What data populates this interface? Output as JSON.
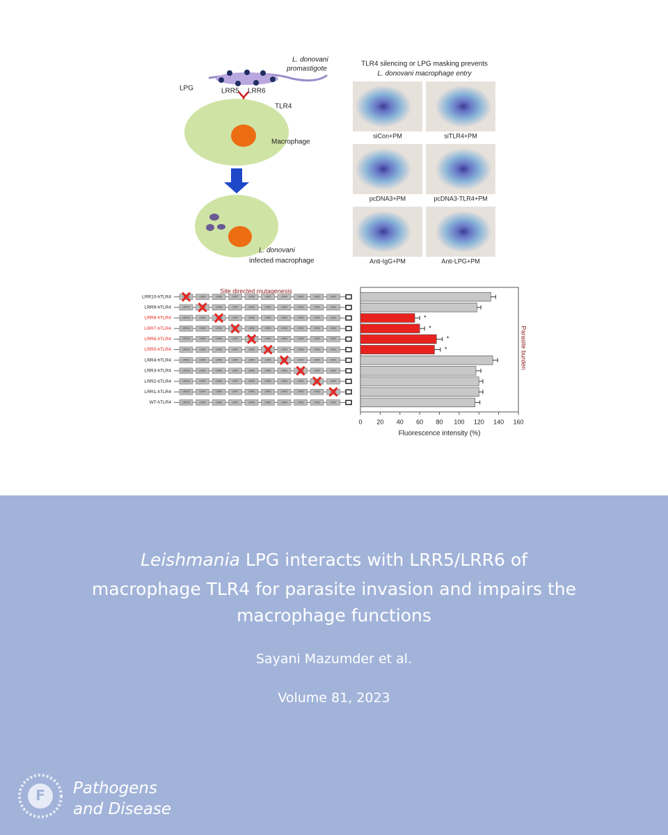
{
  "diagram": {
    "parasite": "L. donovani",
    "parasite_stage": "promastigote",
    "lpg": "LPG",
    "lrr5": "LRR5",
    "lrr6": "LRR6",
    "receptor": "TLR4",
    "cell": "Macrophage",
    "infected_1": "L. donovani",
    "infected_2": "infected macrophage"
  },
  "micrographs": {
    "title_1": "TLR4 silencing or LPG masking prevents",
    "title_2": "L. donovani macrophage entry",
    "panels": [
      "siCon+PM",
      "siTLR4+PM",
      "pcDNA3+PM",
      "pcDNA3-TLR4+PM",
      "Anti-IgG+PM",
      "Anti-LPG+PM"
    ]
  },
  "chart_data": {
    "type": "bar",
    "title": "Site directed mutagenesis",
    "categories": [
      "LRR10-hTLR4",
      "LRR9-hTLR4",
      "LRR8-hTLR4",
      "LRR7-hTLR4",
      "LRR6-hTLR4",
      "LRR5-hTLR4",
      "LRR4-hTLR4",
      "LRR3-hTLR4",
      "LRR2-hTLR4",
      "LRR1-hTLR4",
      "WT-hTLR4"
    ],
    "domains": [
      "LRR10",
      "LRR9",
      "LRR8",
      "LRR7",
      "LRR6",
      "LRR5",
      "LRR4",
      "LRR3",
      "LRR2",
      "LRR1"
    ],
    "deleted": [
      0,
      1,
      2,
      3,
      4,
      5,
      6,
      7,
      8,
      9,
      null
    ],
    "values": [
      132,
      118,
      55,
      60,
      77,
      75,
      134,
      117,
      120,
      120,
      116
    ],
    "errors": [
      5,
      4,
      5,
      5,
      6,
      6,
      5,
      5,
      4,
      4,
      5
    ],
    "significance": [
      null,
      null,
      "*",
      "*",
      "*",
      "*",
      null,
      null,
      null,
      null,
      null
    ],
    "colors": [
      "#c8c8c8",
      "#c8c8c8",
      "#e8231f",
      "#e8231f",
      "#e8231f",
      "#e8231f",
      "#c8c8c8",
      "#c8c8c8",
      "#c8c8c8",
      "#c8c8c8",
      "#c8c8c8"
    ],
    "xlim": [
      0,
      160
    ],
    "xticks": [
      0,
      20,
      40,
      60,
      80,
      100,
      120,
      140,
      160
    ],
    "x_label": "Fluorescence intensity (%)",
    "y2_label": "Parasite burden"
  },
  "footer": {
    "title_italic": "Leishmania",
    "title_lines": [
      "LPG interacts with LRR5/LRR6 of",
      "macrophage TLR4 for parasite invasion and impairs the",
      "macrophage functions"
    ],
    "authors": "Sayani Mazumder et al.",
    "volume": "Volume 81, 2023",
    "journal_1": "Pathogens",
    "journal_2": "and Disease"
  }
}
